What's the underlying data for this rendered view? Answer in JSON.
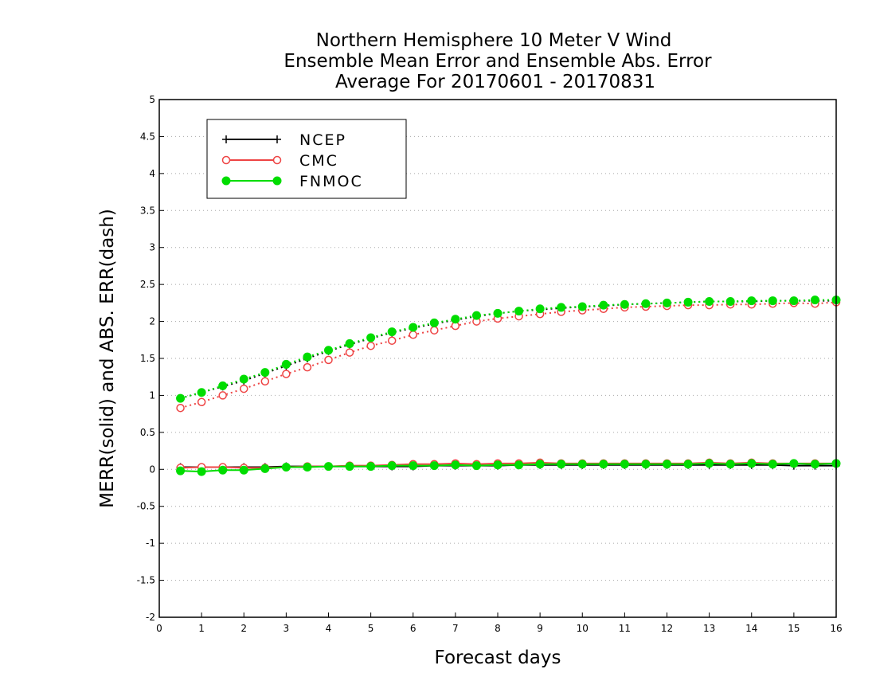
{
  "chart_data": {
    "type": "line",
    "title": [
      "Northern Hemisphere 10 Meter V Wind",
      "Ensemble Mean Error and Ensemble Abs. Error",
      "Average For 20170601 - 20170831"
    ],
    "xlabel": "Forecast days",
    "ylabel": "MERR(solid) and ABS. ERR(dash)",
    "xlim": [
      0,
      16
    ],
    "ylim": [
      -2,
      5
    ],
    "xticks": [
      "0",
      "1",
      "2",
      "3",
      "4",
      "5",
      "6",
      "7",
      "8",
      "9",
      "10",
      "11",
      "12",
      "13",
      "14",
      "15",
      "16"
    ],
    "yticks": [
      "5",
      "4.5",
      "4",
      "3.5",
      "3",
      "2.5",
      "2",
      "1.5",
      "1",
      "0.5",
      "0",
      "-0.5",
      "-1",
      "-1.5",
      "-2"
    ],
    "grid": "horizontal dotted",
    "legend_position": "top-left",
    "x": [
      0.5,
      1,
      1.5,
      2,
      2.5,
      3,
      3.5,
      4,
      4.5,
      5,
      5.5,
      6,
      6.5,
      7,
      7.5,
      8,
      8.5,
      9,
      9.5,
      10,
      10.5,
      11,
      11.5,
      12,
      12.5,
      13,
      13.5,
      14,
      14.5,
      15,
      15.5,
      16
    ],
    "series": [
      {
        "name": "NCEP",
        "color": "#000000",
        "marker": "plus",
        "merr": [
          0.03,
          0.03,
          0.03,
          0.03,
          0.03,
          0.04,
          0.04,
          0.04,
          0.04,
          0.04,
          0.04,
          0.04,
          0.05,
          0.05,
          0.05,
          0.05,
          0.06,
          0.06,
          0.06,
          0.06,
          0.06,
          0.06,
          0.06,
          0.06,
          0.06,
          0.06,
          0.06,
          0.06,
          0.06,
          0.05,
          0.05,
          0.05
        ],
        "abs_err": [
          0.96,
          1.04,
          1.12,
          1.2,
          1.3,
          1.4,
          1.5,
          1.6,
          1.69,
          1.77,
          1.85,
          1.91,
          1.97,
          2.02,
          2.07,
          2.11,
          2.14,
          2.16,
          2.18,
          2.2,
          2.21,
          2.23,
          2.24,
          2.25,
          2.26,
          2.27,
          2.27,
          2.27,
          2.28,
          2.28,
          2.28,
          2.28
        ]
      },
      {
        "name": "CMC",
        "color": "#ee4444",
        "marker": "open-circle",
        "merr": [
          0.02,
          0.03,
          0.03,
          0.02,
          0.02,
          0.03,
          0.04,
          0.04,
          0.05,
          0.05,
          0.06,
          0.07,
          0.07,
          0.08,
          0.07,
          0.08,
          0.08,
          0.09,
          0.08,
          0.08,
          0.08,
          0.08,
          0.08,
          0.08,
          0.08,
          0.09,
          0.08,
          0.09,
          0.08,
          0.08,
          0.08,
          0.08
        ],
        "abs_err": [
          0.83,
          0.91,
          1.0,
          1.09,
          1.19,
          1.29,
          1.38,
          1.48,
          1.58,
          1.67,
          1.74,
          1.82,
          1.88,
          1.94,
          2.0,
          2.04,
          2.07,
          2.1,
          2.13,
          2.15,
          2.17,
          2.19,
          2.2,
          2.21,
          2.22,
          2.22,
          2.23,
          2.23,
          2.24,
          2.25,
          2.24,
          2.26
        ]
      },
      {
        "name": "FNMOC",
        "color": "#00dd00",
        "marker": "filled-circle",
        "merr": [
          -0.02,
          -0.03,
          -0.01,
          -0.01,
          0.01,
          0.03,
          0.03,
          0.04,
          0.04,
          0.04,
          0.05,
          0.05,
          0.05,
          0.06,
          0.05,
          0.06,
          0.06,
          0.07,
          0.07,
          0.07,
          0.07,
          0.07,
          0.07,
          0.07,
          0.07,
          0.08,
          0.07,
          0.08,
          0.07,
          0.08,
          0.07,
          0.08
        ],
        "abs_err": [
          0.96,
          1.04,
          1.13,
          1.22,
          1.31,
          1.42,
          1.52,
          1.61,
          1.7,
          1.78,
          1.86,
          1.92,
          1.98,
          2.03,
          2.08,
          2.11,
          2.14,
          2.17,
          2.19,
          2.2,
          2.22,
          2.23,
          2.24,
          2.25,
          2.26,
          2.27,
          2.27,
          2.28,
          2.28,
          2.28,
          2.29,
          2.29
        ]
      }
    ]
  }
}
